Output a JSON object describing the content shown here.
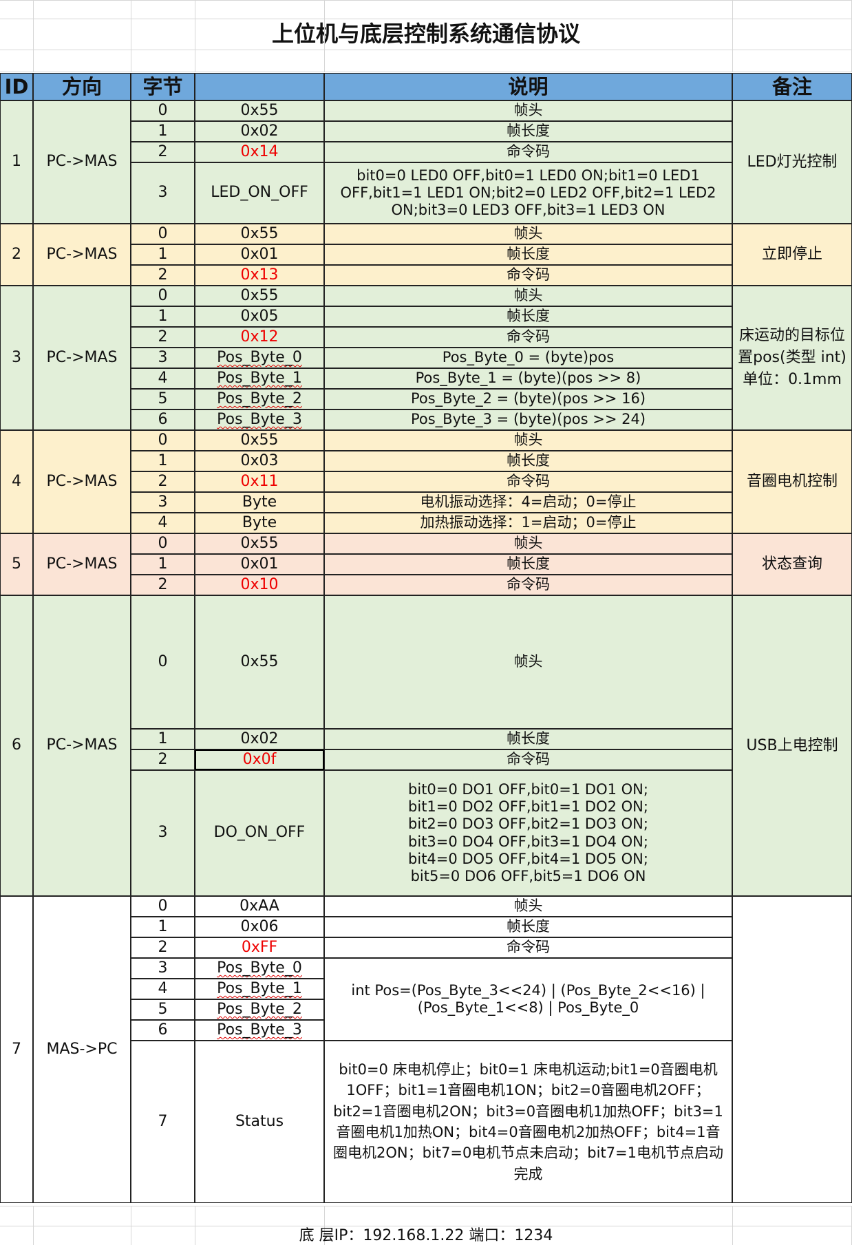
{
  "title": "上位机与底层控制系统通信协议",
  "headers": {
    "id": "ID",
    "direction": "方向",
    "byte": "字节",
    "value": "",
    "desc": "说明",
    "note": "备注"
  },
  "sections": [
    {
      "id": "1",
      "direction": "PC->MAS",
      "note": "LED灯光控制",
      "color": "green",
      "rows": [
        {
          "byte": "0",
          "value": "0x55",
          "desc": "帧头"
        },
        {
          "byte": "1",
          "value": "0x02",
          "desc": "帧长度"
        },
        {
          "byte": "2",
          "value": "0x14",
          "desc": "命令码",
          "value_red": true
        },
        {
          "byte": "3",
          "value": "LED_ON_OFF",
          "desc": "bit0=0 LED0 OFF,bit0=1 LED0 ON;bit1=0 LED1 OFF,bit1=1 LED1 ON;bit2=0 LED2 OFF,bit2=1 LED2 ON;bit3=0 LED3 OFF,bit3=1 LED3 ON"
        }
      ]
    },
    {
      "id": "2",
      "direction": "PC->MAS",
      "note": "立即停止",
      "color": "yellow",
      "rows": [
        {
          "byte": "0",
          "value": "0x55",
          "desc": "帧头"
        },
        {
          "byte": "1",
          "value": "0x01",
          "desc": "帧长度"
        },
        {
          "byte": "2",
          "value": "0x13",
          "desc": "命令码",
          "value_red": true
        }
      ]
    },
    {
      "id": "3",
      "direction": "PC->MAS",
      "note": "床运动的目标位置pos(类型 int)单位：0.1mm",
      "color": "green",
      "rows": [
        {
          "byte": "0",
          "value": "0x55",
          "desc": "帧头"
        },
        {
          "byte": "1",
          "value": "0x05",
          "desc": "帧长度"
        },
        {
          "byte": "2",
          "value": "0x12",
          "desc": "命令码",
          "value_red": true
        },
        {
          "byte": "3",
          "value": "Pos_Byte_0",
          "desc": "Pos_Byte_0 = (byte)pos"
        },
        {
          "byte": "4",
          "value": "Pos_Byte_1",
          "desc": "Pos_Byte_1 = (byte)(pos >> 8)"
        },
        {
          "byte": "5",
          "value": "Pos_Byte_2",
          "desc": "Pos_Byte_2 = (byte)(pos >> 16)"
        },
        {
          "byte": "6",
          "value": "Pos_Byte_3",
          "desc": "Pos_Byte_3 = (byte)(pos >> 24)"
        }
      ]
    },
    {
      "id": "4",
      "direction": "PC->MAS",
      "note": "音圈电机控制",
      "color": "yellow",
      "rows": [
        {
          "byte": "0",
          "value": "0x55",
          "desc": "帧头"
        },
        {
          "byte": "1",
          "value": "0x03",
          "desc": "帧长度"
        },
        {
          "byte": "2",
          "value": "0x11",
          "desc": "命令码",
          "value_red": true
        },
        {
          "byte": "3",
          "value": "Byte",
          "desc": "电机振动选择：4=启动；0=停止"
        },
        {
          "byte": "4",
          "value": "Byte",
          "desc": "加热振动选择：1=启动；0=停止"
        }
      ]
    },
    {
      "id": "5",
      "direction": "PC->MAS",
      "note": "状态查询",
      "color": "pink",
      "rows": [
        {
          "byte": "0",
          "value": "0x55",
          "desc": "帧头"
        },
        {
          "byte": "1",
          "value": "0x01",
          "desc": "帧长度"
        },
        {
          "byte": "2",
          "value": "0x10",
          "desc": "命令码",
          "value_red": true
        }
      ]
    },
    {
      "id": "6",
      "direction": "PC->MAS",
      "note": "USB上电控制",
      "color": "green",
      "rows": [
        {
          "byte": "0",
          "value": "0x55",
          "desc": "帧头"
        },
        {
          "byte": "1",
          "value": "0x02",
          "desc": "帧长度"
        },
        {
          "byte": "2",
          "value": "0x0f",
          "desc": "命令码",
          "value_red": true
        },
        {
          "byte": "3",
          "value": "DO_ON_OFF",
          "desc": "bit0=0 DO1 OFF,bit0=1 DO1 ON;\nbit1=0 DO2 OFF,bit1=1 DO2 ON;\nbit2=0 DO3 OFF,bit2=1 DO3 ON;\nbit3=0 DO4 OFF,bit3=1 DO4 ON;\nbit4=0 DO5 OFF,bit4=1 DO5 ON;\nbit5=0 DO6 OFF,bit5=1 DO6 ON"
        }
      ]
    },
    {
      "id": "7",
      "direction": "MAS->PC",
      "note": "",
      "color": "white",
      "rows": [
        {
          "byte": "0",
          "value": "0xAA",
          "desc": "帧头"
        },
        {
          "byte": "1",
          "value": "0x06",
          "desc": "帧长度"
        },
        {
          "byte": "2",
          "value": "0xFF",
          "desc": "命令码",
          "value_red": true
        },
        {
          "byte": "3",
          "value": "Pos_Byte_0"
        },
        {
          "byte": "4",
          "value": "Pos_Byte_1"
        },
        {
          "byte": "5",
          "value": "Pos_Byte_2"
        },
        {
          "byte": "6",
          "value": "Pos_Byte_3"
        },
        {
          "byte": "7",
          "value": "Status",
          "desc": "bit0=0 床电机停止；bit0=1 床电机运动;bit1=0音圈电机1OFF；bit1=1音圈电机1ON；bit2=0音圈电机2OFF；bit2=1音圈电机2ON；bit3=0音圈电机1加热OFF；bit3=1音圈电机1加热ON；bit4=0音圈电机2加热OFF；bit4=1音圈电机2ON；bit7=0电机节点未启动；bit7=1电机节点启动完成"
        }
      ],
      "merged_desc": "int Pos=(Pos_Byte_3<<24) | (Pos_Byte_2<<16) | (Pos_Byte_1<<8) | Pos_Byte_0"
    }
  ],
  "footer": "底   层IP：192.168.1.22  端口：1234",
  "colors": {
    "header": "#6fa8dc",
    "green": "#e2efd9",
    "yellow": "#fdf0cc",
    "pink": "#fbe4d6",
    "red": "#ee0000"
  }
}
